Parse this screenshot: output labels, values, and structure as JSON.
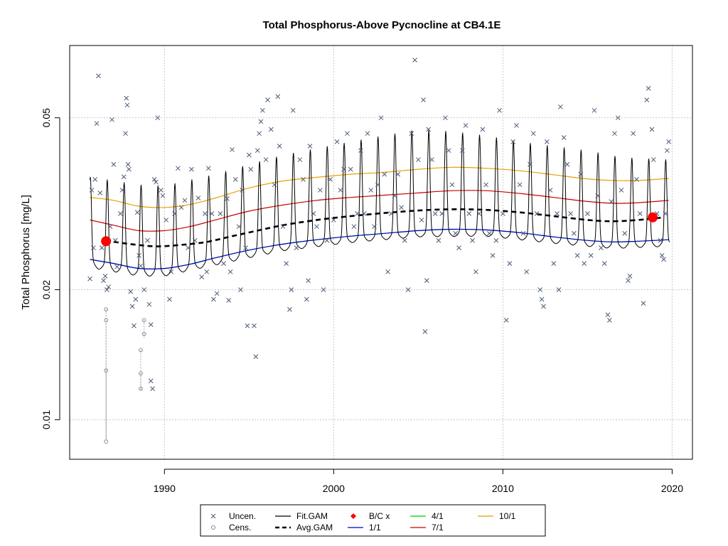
{
  "chart_data": {
    "type": "line",
    "title": "Total Phosphorus-Above Pycnocline at CB4.1E",
    "xlabel": "",
    "ylabel": "Total Phosphorus [mg/L]",
    "y_scale": "log",
    "xlim": [
      1984.4,
      2021.2
    ],
    "ylim": [
      0.0081,
      0.0735
    ],
    "x_ticks": [
      1990,
      2000,
      2010,
      2020
    ],
    "x_tick_labels": [
      "1990",
      "2000",
      "2010",
      "2020"
    ],
    "y_ticks": [
      0.01,
      0.02,
      0.05
    ],
    "y_tick_labels": [
      "0.01",
      "0.02",
      "0.05"
    ],
    "grid": true,
    "legend_position": "bottom",
    "legend": [
      {
        "label": "Uncen.",
        "symbol": "x",
        "color": "#4a5a78"
      },
      {
        "label": "Fit.GAM",
        "symbol": "line",
        "color": "#000000"
      },
      {
        "label": "B/C x",
        "symbol": "diamond",
        "color": "#ff0000"
      },
      {
        "label": "4/1",
        "symbol": "line",
        "color": "#00cc00"
      },
      {
        "label": "10/1",
        "symbol": "line",
        "color": "#e8a000"
      },
      {
        "label": "Cens.",
        "symbol": "o",
        "color": "#808080"
      },
      {
        "label": "Avg.GAM",
        "symbol": "dashed-line",
        "color": "#000000"
      },
      {
        "label": "1/1",
        "symbol": "line",
        "color": "#0000cc"
      },
      {
        "label": "7/1",
        "symbol": "line",
        "color": "#cc0000"
      }
    ],
    "series": [
      {
        "name": "10/1",
        "color": "#e8a000",
        "x": [
          1985.6,
          1987,
          1988.5,
          1990,
          1991.5,
          1993,
          1995,
          1997,
          1999,
          2001,
          2003,
          2005,
          2007,
          2009,
          2011,
          2013,
          2015,
          2016.5,
          2018,
          2019.8
        ],
        "y": [
          0.0327,
          0.0322,
          0.0312,
          0.031,
          0.0315,
          0.0326,
          0.0344,
          0.0357,
          0.0364,
          0.037,
          0.0374,
          0.038,
          0.0384,
          0.0382,
          0.0377,
          0.0369,
          0.0361,
          0.0358,
          0.0358,
          0.0362
        ]
      },
      {
        "name": "7/1",
        "color": "#cc0000",
        "x": [
          1985.6,
          1987,
          1988.5,
          1990,
          1991.5,
          1993,
          1995,
          1997,
          1999,
          2001,
          2003,
          2005,
          2007,
          2009,
          2011,
          2013,
          2015,
          2016.5,
          2018,
          2019.8
        ],
        "y": [
          0.029,
          0.0282,
          0.0274,
          0.0274,
          0.028,
          0.029,
          0.0304,
          0.0314,
          0.0322,
          0.0327,
          0.0331,
          0.0335,
          0.0339,
          0.0339,
          0.0334,
          0.0327,
          0.032,
          0.0317,
          0.0318,
          0.0322
        ]
      },
      {
        "name": "4/1",
        "color": "#00cc00",
        "x": [
          1985.6,
          1987,
          1988.5,
          1990,
          1991.5,
          1993,
          1995,
          1997,
          1999,
          2001,
          2003,
          2005,
          2007,
          2009,
          2011,
          2013,
          2015,
          2016.5,
          2018,
          2019.8
        ],
        "y": [
          0.0235,
          0.023,
          0.0224,
          0.0224,
          0.0229,
          0.0237,
          0.0247,
          0.0255,
          0.0261,
          0.0266,
          0.027,
          0.0274,
          0.0276,
          0.0275,
          0.0271,
          0.0265,
          0.026,
          0.0258,
          0.0259,
          0.0261
        ]
      },
      {
        "name": "1/1",
        "color": "#0000cc",
        "x": [
          1985.6,
          1987,
          1988.5,
          1990,
          1991.5,
          1993,
          1995,
          1997,
          1999,
          2001,
          2003,
          2005,
          2007,
          2009,
          2011,
          2013,
          2015,
          2016.5,
          2018,
          2019.8
        ],
        "y": [
          0.0235,
          0.023,
          0.0224,
          0.0224,
          0.0229,
          0.0237,
          0.0247,
          0.0255,
          0.0261,
          0.0266,
          0.027,
          0.0274,
          0.0276,
          0.0275,
          0.0271,
          0.0265,
          0.026,
          0.0258,
          0.0259,
          0.0261
        ]
      },
      {
        "name": "Avg.GAM",
        "color": "#000000",
        "x": [
          1986.5,
          1988,
          1989.5,
          1991,
          1992.5,
          1994,
          1995.5,
          1997,
          1999,
          2001,
          2003,
          2005,
          2007,
          2009,
          2011,
          2013,
          2015,
          2016.5,
          2018,
          2019.5
        ],
        "y": [
          0.026,
          0.0255,
          0.0252,
          0.0254,
          0.0258,
          0.0266,
          0.0274,
          0.0282,
          0.029,
          0.0296,
          0.0301,
          0.0305,
          0.0307,
          0.0306,
          0.0302,
          0.0296,
          0.029,
          0.0288,
          0.029,
          0.0294
        ]
      }
    ],
    "fit_gam": {
      "name": "Fit.GAM",
      "color": "#000000",
      "x_start": 1985.6,
      "x_end": 2019.85,
      "baseline": [
        [
          1985.6,
          0.0235
        ],
        [
          1988.5,
          0.0224
        ],
        [
          1990,
          0.0224
        ],
        [
          1993,
          0.0237
        ],
        [
          1997,
          0.0255
        ],
        [
          2001,
          0.0266
        ],
        [
          2005,
          0.0274
        ],
        [
          2009,
          0.0275
        ],
        [
          2013,
          0.0265
        ],
        [
          2016.5,
          0.0258
        ],
        [
          2019.8,
          0.0261
        ]
      ],
      "peak": [
        [
          1985.6,
          0.0365
        ],
        [
          1988.5,
          0.035
        ],
        [
          1990,
          0.0348
        ],
        [
          1993,
          0.037
        ],
        [
          1997,
          0.041
        ],
        [
          2001,
          0.044
        ],
        [
          2003,
          0.0455
        ],
        [
          2005,
          0.047
        ],
        [
          2007,
          0.0465
        ],
        [
          2009,
          0.0455
        ],
        [
          2011,
          0.044
        ],
        [
          2013,
          0.043
        ],
        [
          2015,
          0.042
        ],
        [
          2017,
          0.0405
        ],
        [
          2019.8,
          0.04
        ]
      ],
      "trough": [
        [
          1985.6,
          0.0225
        ],
        [
          1988.5,
          0.0215
        ],
        [
          1990,
          0.0215
        ],
        [
          1993,
          0.0228
        ],
        [
          1997,
          0.0246
        ],
        [
          2001,
          0.0257
        ],
        [
          2005,
          0.0265
        ],
        [
          2009,
          0.0266
        ],
        [
          2013,
          0.0256
        ],
        [
          2016.5,
          0.0249
        ],
        [
          2019.8,
          0.0252
        ]
      ],
      "peak_phase": 0.62
    },
    "baseline_current_points": [
      {
        "x": 1986.55,
        "y": 0.0259
      },
      {
        "x": 2018.85,
        "y": 0.0294
      }
    ],
    "uncensored": [
      [
        1985.6,
        0.0212
      ],
      [
        1985.7,
        0.034
      ],
      [
        1985.8,
        0.025
      ],
      [
        1985.9,
        0.036
      ],
      [
        1986.0,
        0.0485
      ],
      [
        1986.1,
        0.0625
      ],
      [
        1986.2,
        0.0335
      ],
      [
        1986.3,
        0.025
      ],
      [
        1986.4,
        0.021
      ],
      [
        1986.5,
        0.0215
      ],
      [
        1986.6,
        0.02
      ],
      [
        1986.7,
        0.0203
      ],
      [
        1986.8,
        0.028
      ],
      [
        1986.9,
        0.0495
      ],
      [
        1987.0,
        0.039
      ],
      [
        1987.1,
        0.026
      ],
      [
        1987.2,
        0.0226
      ],
      [
        1987.4,
        0.03
      ],
      [
        1987.5,
        0.034
      ],
      [
        1987.6,
        0.0365
      ],
      [
        1987.7,
        0.046
      ],
      [
        1987.75,
        0.0555
      ],
      [
        1987.8,
        0.0535
      ],
      [
        1987.85,
        0.039
      ],
      [
        1987.9,
        0.038
      ],
      [
        1988.0,
        0.0198
      ],
      [
        1988.1,
        0.0183
      ],
      [
        1988.2,
        0.0165
      ],
      [
        1988.3,
        0.019
      ],
      [
        1988.4,
        0.0302
      ],
      [
        1988.5,
        0.024
      ],
      [
        1988.6,
        0.0227
      ],
      [
        1988.8,
        0.02
      ],
      [
        1989.0,
        0.026
      ],
      [
        1989.1,
        0.0185
      ],
      [
        1989.2,
        0.0166
      ],
      [
        1989.2,
        0.0123
      ],
      [
        1989.3,
        0.0118
      ],
      [
        1989.4,
        0.036
      ],
      [
        1989.5,
        0.0355
      ],
      [
        1989.6,
        0.05
      ],
      [
        1989.8,
        0.034
      ],
      [
        1989.9,
        0.033
      ],
      [
        1990.1,
        0.029
      ],
      [
        1990.3,
        0.019
      ],
      [
        1990.4,
        0.022
      ],
      [
        1990.6,
        0.03
      ],
      [
        1990.8,
        0.0382
      ],
      [
        1991.0,
        0.031
      ],
      [
        1991.2,
        0.0322
      ],
      [
        1991.4,
        0.025
      ],
      [
        1991.6,
        0.038
      ],
      [
        1991.8,
        0.026
      ],
      [
        1992.0,
        0.0326
      ],
      [
        1992.2,
        0.0214
      ],
      [
        1992.4,
        0.03
      ],
      [
        1992.5,
        0.022
      ],
      [
        1992.6,
        0.0382
      ],
      [
        1992.8,
        0.03
      ],
      [
        1992.9,
        0.019
      ],
      [
        1993.1,
        0.0196
      ],
      [
        1993.3,
        0.03
      ],
      [
        1993.5,
        0.023
      ],
      [
        1993.7,
        0.0325
      ],
      [
        1993.8,
        0.0189
      ],
      [
        1993.9,
        0.022
      ],
      [
        1994.0,
        0.0422
      ],
      [
        1994.2,
        0.036
      ],
      [
        1994.4,
        0.028
      ],
      [
        1994.5,
        0.02
      ],
      [
        1994.6,
        0.034
      ],
      [
        1994.8,
        0.025
      ],
      [
        1994.9,
        0.0165
      ],
      [
        1995.0,
        0.041
      ],
      [
        1995.1,
        0.038
      ],
      [
        1995.3,
        0.0165
      ],
      [
        1995.4,
        0.014
      ],
      [
        1995.5,
        0.042
      ],
      [
        1995.6,
        0.046
      ],
      [
        1995.7,
        0.049
      ],
      [
        1995.8,
        0.052
      ],
      [
        1996.0,
        0.04
      ],
      [
        1996.1,
        0.055
      ],
      [
        1996.3,
        0.047
      ],
      [
        1996.5,
        0.035
      ],
      [
        1996.7,
        0.056
      ],
      [
        1996.8,
        0.043
      ],
      [
        1997.0,
        0.028
      ],
      [
        1997.2,
        0.023
      ],
      [
        1997.4,
        0.018
      ],
      [
        1997.5,
        0.02
      ],
      [
        1997.6,
        0.052
      ],
      [
        1997.8,
        0.025
      ],
      [
        1998.0,
        0.04
      ],
      [
        1998.2,
        0.036
      ],
      [
        1998.4,
        0.019
      ],
      [
        1998.5,
        0.021
      ],
      [
        1998.6,
        0.043
      ],
      [
        1998.8,
        0.03
      ],
      [
        1999.0,
        0.028
      ],
      [
        1999.2,
        0.034
      ],
      [
        1999.4,
        0.02
      ],
      [
        1999.6,
        0.026
      ],
      [
        1999.8,
        0.036
      ],
      [
        2000.0,
        0.029
      ],
      [
        2000.2,
        0.044
      ],
      [
        2000.4,
        0.034
      ],
      [
        2000.6,
        0.038
      ],
      [
        2000.8,
        0.046
      ],
      [
        2001.0,
        0.038
      ],
      [
        2001.2,
        0.028
      ],
      [
        2001.4,
        0.03
      ],
      [
        2001.6,
        0.042
      ],
      [
        2001.8,
        0.03
      ],
      [
        2002.0,
        0.046
      ],
      [
        2002.2,
        0.034
      ],
      [
        2002.4,
        0.028
      ],
      [
        2002.6,
        0.035
      ],
      [
        2002.8,
        0.05
      ],
      [
        2003.0,
        0.037
      ],
      [
        2003.2,
        0.022
      ],
      [
        2003.4,
        0.03
      ],
      [
        2003.6,
        0.033
      ],
      [
        2003.8,
        0.037
      ],
      [
        2004.0,
        0.031
      ],
      [
        2004.2,
        0.026
      ],
      [
        2004.4,
        0.02
      ],
      [
        2004.6,
        0.046
      ],
      [
        2004.8,
        0.068
      ],
      [
        2005.0,
        0.04
      ],
      [
        2005.2,
        0.029
      ],
      [
        2005.3,
        0.055
      ],
      [
        2005.4,
        0.016
      ],
      [
        2005.5,
        0.021
      ],
      [
        2005.6,
        0.047
      ],
      [
        2005.8,
        0.04
      ],
      [
        2006.0,
        0.03
      ],
      [
        2006.2,
        0.026
      ],
      [
        2006.4,
        0.03
      ],
      [
        2006.6,
        0.05
      ],
      [
        2006.8,
        0.042
      ],
      [
        2007.0,
        0.035
      ],
      [
        2007.2,
        0.027
      ],
      [
        2007.4,
        0.025
      ],
      [
        2007.6,
        0.042
      ],
      [
        2007.8,
        0.048
      ],
      [
        2008.0,
        0.03
      ],
      [
        2008.2,
        0.026
      ],
      [
        2008.4,
        0.022
      ],
      [
        2008.6,
        0.03
      ],
      [
        2008.8,
        0.047
      ],
      [
        2009.0,
        0.035
      ],
      [
        2009.2,
        0.027
      ],
      [
        2009.4,
        0.024
      ],
      [
        2009.6,
        0.026
      ],
      [
        2009.8,
        0.052
      ],
      [
        2010.0,
        0.03
      ],
      [
        2010.2,
        0.017
      ],
      [
        2010.4,
        0.023
      ],
      [
        2010.6,
        0.044
      ],
      [
        2010.8,
        0.048
      ],
      [
        2011.0,
        0.035
      ],
      [
        2011.2,
        0.027
      ],
      [
        2011.4,
        0.022
      ],
      [
        2011.6,
        0.039
      ],
      [
        2011.8,
        0.046
      ],
      [
        2012.0,
        0.03
      ],
      [
        2012.2,
        0.02
      ],
      [
        2012.3,
        0.019
      ],
      [
        2012.4,
        0.0183
      ],
      [
        2012.6,
        0.044
      ],
      [
        2012.8,
        0.034
      ],
      [
        2013.0,
        0.023
      ],
      [
        2013.2,
        0.03
      ],
      [
        2013.3,
        0.02
      ],
      [
        2013.4,
        0.053
      ],
      [
        2013.6,
        0.045
      ],
      [
        2013.8,
        0.039
      ],
      [
        2014.0,
        0.03
      ],
      [
        2014.2,
        0.027
      ],
      [
        2014.4,
        0.024
      ],
      [
        2014.6,
        0.037
      ],
      [
        2014.8,
        0.023
      ],
      [
        2015.0,
        0.03
      ],
      [
        2015.2,
        0.024
      ],
      [
        2015.4,
        0.052
      ],
      [
        2015.6,
        0.033
      ],
      [
        2015.8,
        0.025
      ],
      [
        2016.0,
        0.023
      ],
      [
        2016.2,
        0.0175
      ],
      [
        2016.3,
        0.017
      ],
      [
        2016.4,
        0.032
      ],
      [
        2016.6,
        0.046
      ],
      [
        2016.8,
        0.05
      ],
      [
        2017.0,
        0.034
      ],
      [
        2017.2,
        0.027
      ],
      [
        2017.4,
        0.021
      ],
      [
        2017.5,
        0.0215
      ],
      [
        2017.7,
        0.046
      ],
      [
        2017.9,
        0.036
      ],
      [
        2018.1,
        0.03
      ],
      [
        2018.3,
        0.0186
      ],
      [
        2018.5,
        0.055
      ],
      [
        2018.6,
        0.0585
      ],
      [
        2018.8,
        0.047
      ],
      [
        2018.9,
        0.04
      ],
      [
        2019.1,
        0.03
      ],
      [
        2019.3,
        0.026
      ],
      [
        2019.4,
        0.024
      ],
      [
        2019.5,
        0.0235
      ],
      [
        2019.6,
        0.03
      ],
      [
        2019.7,
        0.042
      ],
      [
        2019.8,
        0.044
      ]
    ],
    "censored": [
      {
        "x": 1986.55,
        "y": 0.018,
        "low": 0.009
      },
      {
        "x": 1986.55,
        "y": 0.017,
        "low": 0.009
      },
      {
        "x": 1986.55,
        "y": 0.013,
        "low": 0.009
      },
      {
        "x": 1986.55,
        "y": 0.0089,
        "low": 0.0089
      },
      {
        "x": 1988.6,
        "y": 0.0145,
        "low": 0.0117
      },
      {
        "x": 1988.6,
        "y": 0.0128,
        "low": 0.0117
      },
      {
        "x": 1988.6,
        "y": 0.0118,
        "low": 0.0117
      },
      {
        "x": 1988.8,
        "y": 0.017,
        "low": 0.0155
      },
      {
        "x": 1988.8,
        "y": 0.0158,
        "low": 0.0155
      }
    ]
  }
}
